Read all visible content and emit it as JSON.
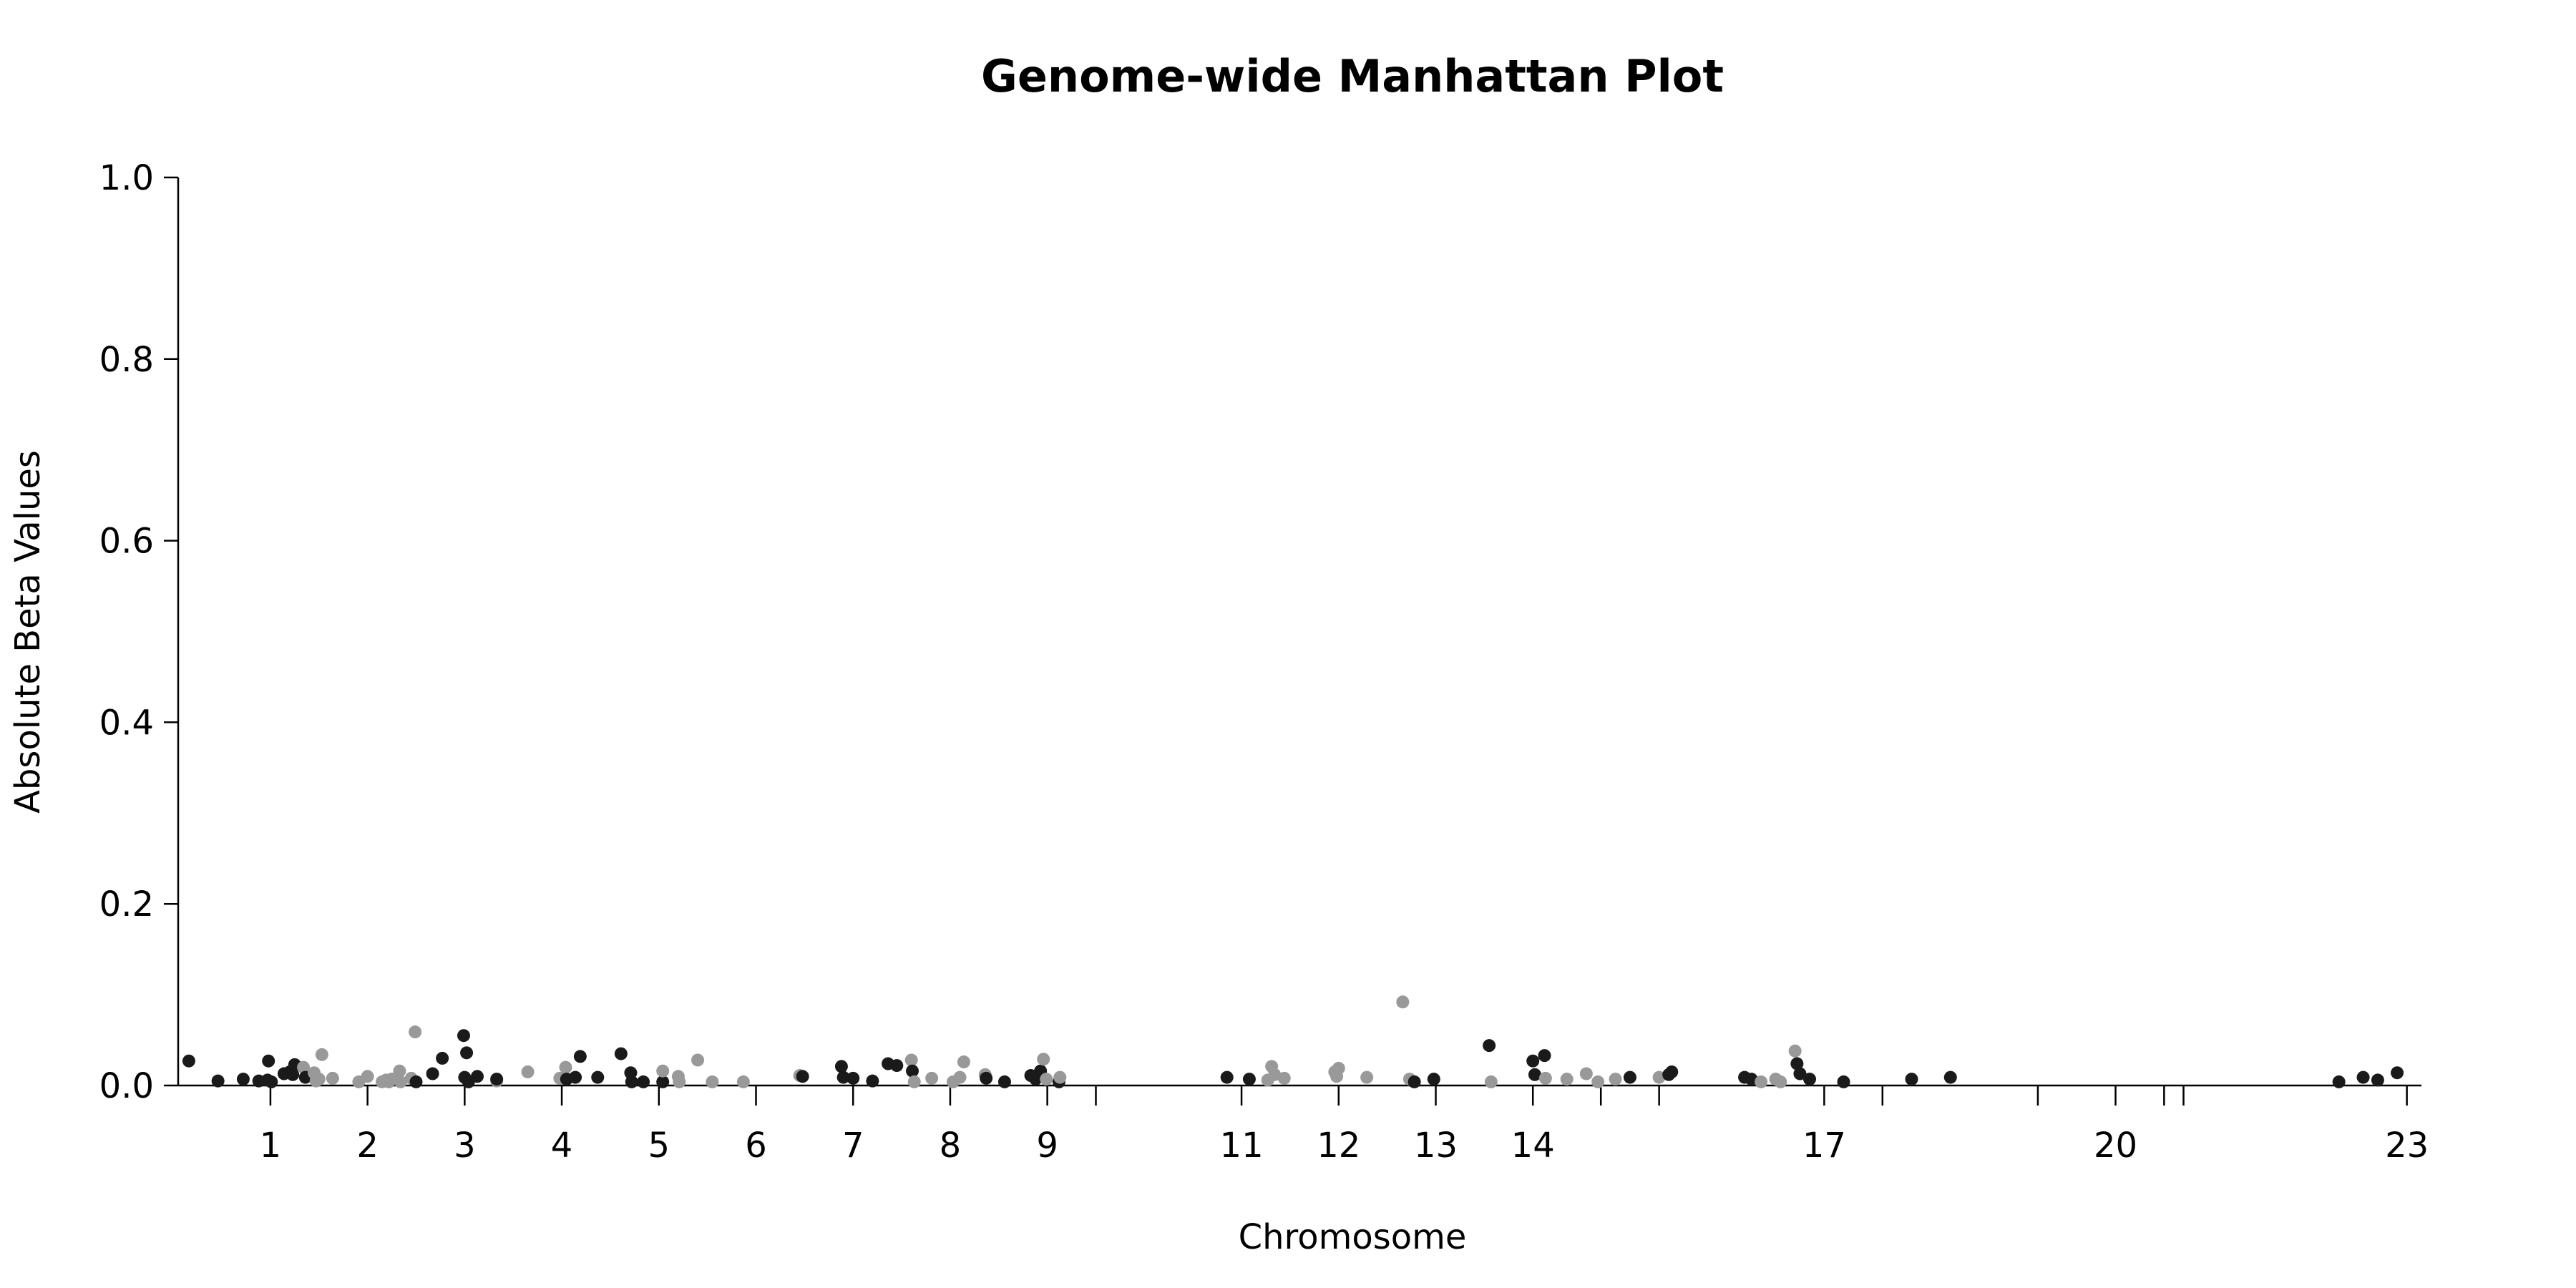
{
  "chart_data": {
    "type": "scatter",
    "subtype": "manhattan",
    "title": "Genome-wide Manhattan Plot",
    "xlabel": "Chromosome",
    "ylabel": "Absolute Beta Values",
    "ylim": [
      0,
      1.0
    ],
    "yticks": [
      "0.0",
      "0.2",
      "0.4",
      "0.6",
      "0.8",
      "1.0"
    ],
    "grid": false,
    "legend": "none",
    "colors": {
      "dark": "#1a1a1a",
      "light": "#999999"
    },
    "xlim": [
      0.05,
      23.15
    ],
    "chromosome_ticks": [
      {
        "label": "1",
        "x": 1.0
      },
      {
        "label": "2",
        "x": 2.0
      },
      {
        "label": "3",
        "x": 3.0
      },
      {
        "label": "4",
        "x": 4.0
      },
      {
        "label": "5",
        "x": 5.0
      },
      {
        "label": "6",
        "x": 6.0
      },
      {
        "label": "7",
        "x": 7.0
      },
      {
        "label": "8",
        "x": 8.0
      },
      {
        "label": "9",
        "x": 9.0
      },
      {
        "label": "",
        "x": 9.5
      },
      {
        "label": "11",
        "x": 11.0
      },
      {
        "label": "12",
        "x": 12.0
      },
      {
        "label": "13",
        "x": 13.0
      },
      {
        "label": "14",
        "x": 14.0
      },
      {
        "label": "",
        "x": 14.7
      },
      {
        "label": "",
        "x": 15.3
      },
      {
        "label": "17",
        "x": 17.0
      },
      {
        "label": "",
        "x": 17.6
      },
      {
        "label": "",
        "x": 19.2
      },
      {
        "label": "20",
        "x": 20.0
      },
      {
        "label": "",
        "x": 20.5
      },
      {
        "label": "",
        "x": 20.7
      },
      {
        "label": "23",
        "x": 23.0
      }
    ],
    "points": [
      {
        "x": 0.16,
        "y": 0.027,
        "c": "dark"
      },
      {
        "x": 0.46,
        "y": 0.005,
        "c": "dark"
      },
      {
        "x": 0.72,
        "y": 0.007,
        "c": "dark"
      },
      {
        "x": 0.88,
        "y": 0.005,
        "c": "dark"
      },
      {
        "x": 0.97,
        "y": 0.006,
        "c": "dark"
      },
      {
        "x": 0.98,
        "y": 0.027,
        "c": "dark"
      },
      {
        "x": 1.01,
        "y": 0.004,
        "c": "dark"
      },
      {
        "x": 1.14,
        "y": 0.013,
        "c": "dark"
      },
      {
        "x": 1.2,
        "y": 0.015,
        "c": "dark"
      },
      {
        "x": 1.23,
        "y": 0.012,
        "c": "dark"
      },
      {
        "x": 1.25,
        "y": 0.023,
        "c": "dark"
      },
      {
        "x": 1.34,
        "y": 0.02,
        "c": "light"
      },
      {
        "x": 1.36,
        "y": 0.009,
        "c": "dark"
      },
      {
        "x": 1.45,
        "y": 0.014,
        "c": "light"
      },
      {
        "x": 1.47,
        "y": 0.005,
        "c": "light"
      },
      {
        "x": 1.5,
        "y": 0.007,
        "c": "light"
      },
      {
        "x": 1.53,
        "y": 0.034,
        "c": "light"
      },
      {
        "x": 1.64,
        "y": 0.008,
        "c": "light"
      },
      {
        "x": 1.91,
        "y": 0.004,
        "c": "light"
      },
      {
        "x": 2.0,
        "y": 0.01,
        "c": "light"
      },
      {
        "x": 2.15,
        "y": 0.004,
        "c": "light"
      },
      {
        "x": 2.19,
        "y": 0.006,
        "c": "light"
      },
      {
        "x": 2.22,
        "y": 0.004,
        "c": "light"
      },
      {
        "x": 2.25,
        "y": 0.007,
        "c": "light"
      },
      {
        "x": 2.33,
        "y": 0.016,
        "c": "light"
      },
      {
        "x": 2.34,
        "y": 0.004,
        "c": "light"
      },
      {
        "x": 2.45,
        "y": 0.008,
        "c": "light"
      },
      {
        "x": 2.49,
        "y": 0.059,
        "c": "light"
      },
      {
        "x": 2.5,
        "y": 0.004,
        "c": "dark"
      },
      {
        "x": 2.67,
        "y": 0.013,
        "c": "dark"
      },
      {
        "x": 2.77,
        "y": 0.03,
        "c": "dark"
      },
      {
        "x": 2.99,
        "y": 0.055,
        "c": "dark"
      },
      {
        "x": 3.0,
        "y": 0.009,
        "c": "dark"
      },
      {
        "x": 3.02,
        "y": 0.036,
        "c": "dark"
      },
      {
        "x": 3.04,
        "y": 0.004,
        "c": "dark"
      },
      {
        "x": 3.13,
        "y": 0.01,
        "c": "dark"
      },
      {
        "x": 3.33,
        "y": 0.005,
        "c": "light"
      },
      {
        "x": 3.33,
        "y": 0.007,
        "c": "dark"
      },
      {
        "x": 3.65,
        "y": 0.015,
        "c": "light"
      },
      {
        "x": 3.98,
        "y": 0.008,
        "c": "light"
      },
      {
        "x": 4.04,
        "y": 0.02,
        "c": "light"
      },
      {
        "x": 4.05,
        "y": 0.007,
        "c": "dark"
      },
      {
        "x": 4.14,
        "y": 0.009,
        "c": "dark"
      },
      {
        "x": 4.19,
        "y": 0.032,
        "c": "dark"
      },
      {
        "x": 4.37,
        "y": 0.009,
        "c": "dark"
      },
      {
        "x": 4.61,
        "y": 0.035,
        "c": "dark"
      },
      {
        "x": 4.71,
        "y": 0.014,
        "c": "dark"
      },
      {
        "x": 4.72,
        "y": 0.004,
        "c": "dark"
      },
      {
        "x": 4.84,
        "y": 0.004,
        "c": "dark"
      },
      {
        "x": 5.04,
        "y": 0.004,
        "c": "dark"
      },
      {
        "x": 5.04,
        "y": 0.016,
        "c": "light"
      },
      {
        "x": 5.2,
        "y": 0.01,
        "c": "light"
      },
      {
        "x": 5.21,
        "y": 0.004,
        "c": "light"
      },
      {
        "x": 5.4,
        "y": 0.028,
        "c": "light"
      },
      {
        "x": 5.55,
        "y": 0.004,
        "c": "light"
      },
      {
        "x": 5.87,
        "y": 0.004,
        "c": "light"
      },
      {
        "x": 6.45,
        "y": 0.011,
        "c": "light"
      },
      {
        "x": 6.48,
        "y": 0.01,
        "c": "dark"
      },
      {
        "x": 6.88,
        "y": 0.021,
        "c": "dark"
      },
      {
        "x": 6.9,
        "y": 0.009,
        "c": "dark"
      },
      {
        "x": 7.0,
        "y": 0.008,
        "c": "dark"
      },
      {
        "x": 7.2,
        "y": 0.005,
        "c": "dark"
      },
      {
        "x": 7.36,
        "y": 0.024,
        "c": "dark"
      },
      {
        "x": 7.45,
        "y": 0.022,
        "c": "dark"
      },
      {
        "x": 7.6,
        "y": 0.028,
        "c": "light"
      },
      {
        "x": 7.61,
        "y": 0.016,
        "c": "dark"
      },
      {
        "x": 7.63,
        "y": 0.004,
        "c": "light"
      },
      {
        "x": 7.81,
        "y": 0.008,
        "c": "light"
      },
      {
        "x": 8.03,
        "y": 0.004,
        "c": "light"
      },
      {
        "x": 8.1,
        "y": 0.009,
        "c": "light"
      },
      {
        "x": 8.14,
        "y": 0.026,
        "c": "light"
      },
      {
        "x": 8.36,
        "y": 0.012,
        "c": "light"
      },
      {
        "x": 8.37,
        "y": 0.008,
        "c": "dark"
      },
      {
        "x": 8.56,
        "y": 0.004,
        "c": "dark"
      },
      {
        "x": 8.83,
        "y": 0.011,
        "c": "dark"
      },
      {
        "x": 8.88,
        "y": 0.007,
        "c": "dark"
      },
      {
        "x": 8.93,
        "y": 0.016,
        "c": "dark"
      },
      {
        "x": 8.96,
        "y": 0.029,
        "c": "light"
      },
      {
        "x": 8.99,
        "y": 0.007,
        "c": "light"
      },
      {
        "x": 9.12,
        "y": 0.004,
        "c": "dark"
      },
      {
        "x": 9.13,
        "y": 0.009,
        "c": "light"
      },
      {
        "x": 10.85,
        "y": 0.009,
        "c": "dark"
      },
      {
        "x": 11.08,
        "y": 0.007,
        "c": "dark"
      },
      {
        "x": 11.27,
        "y": 0.006,
        "c": "light"
      },
      {
        "x": 11.31,
        "y": 0.021,
        "c": "light"
      },
      {
        "x": 11.34,
        "y": 0.012,
        "c": "light"
      },
      {
        "x": 11.44,
        "y": 0.008,
        "c": "light"
      },
      {
        "x": 11.96,
        "y": 0.015,
        "c": "light"
      },
      {
        "x": 11.98,
        "y": 0.01,
        "c": "light"
      },
      {
        "x": 12.0,
        "y": 0.019,
        "c": "light"
      },
      {
        "x": 12.29,
        "y": 0.009,
        "c": "light"
      },
      {
        "x": 12.66,
        "y": 0.092,
        "c": "light"
      },
      {
        "x": 12.73,
        "y": 0.007,
        "c": "light"
      },
      {
        "x": 12.78,
        "y": 0.004,
        "c": "dark"
      },
      {
        "x": 12.98,
        "y": 0.007,
        "c": "dark"
      },
      {
        "x": 13.55,
        "y": 0.044,
        "c": "dark"
      },
      {
        "x": 13.57,
        "y": 0.004,
        "c": "light"
      },
      {
        "x": 14.0,
        "y": 0.027,
        "c": "dark"
      },
      {
        "x": 14.02,
        "y": 0.012,
        "c": "dark"
      },
      {
        "x": 14.12,
        "y": 0.033,
        "c": "dark"
      },
      {
        "x": 14.13,
        "y": 0.008,
        "c": "light"
      },
      {
        "x": 14.35,
        "y": 0.007,
        "c": "light"
      },
      {
        "x": 14.55,
        "y": 0.013,
        "c": "light"
      },
      {
        "x": 14.67,
        "y": 0.004,
        "c": "light"
      },
      {
        "x": 14.85,
        "y": 0.007,
        "c": "light"
      },
      {
        "x": 15.0,
        "y": 0.009,
        "c": "dark"
      },
      {
        "x": 15.3,
        "y": 0.009,
        "c": "light"
      },
      {
        "x": 15.4,
        "y": 0.012,
        "c": "dark"
      },
      {
        "x": 15.43,
        "y": 0.015,
        "c": "dark"
      },
      {
        "x": 16.18,
        "y": 0.009,
        "c": "dark"
      },
      {
        "x": 16.25,
        "y": 0.007,
        "c": "dark"
      },
      {
        "x": 16.35,
        "y": 0.004,
        "c": "light"
      },
      {
        "x": 16.5,
        "y": 0.007,
        "c": "light"
      },
      {
        "x": 16.55,
        "y": 0.004,
        "c": "light"
      },
      {
        "x": 16.7,
        "y": 0.038,
        "c": "light"
      },
      {
        "x": 16.72,
        "y": 0.024,
        "c": "dark"
      },
      {
        "x": 16.75,
        "y": 0.013,
        "c": "dark"
      },
      {
        "x": 16.85,
        "y": 0.007,
        "c": "dark"
      },
      {
        "x": 17.2,
        "y": 0.004,
        "c": "dark"
      },
      {
        "x": 17.9,
        "y": 0.007,
        "c": "dark"
      },
      {
        "x": 18.3,
        "y": 0.009,
        "c": "dark"
      },
      {
        "x": 22.3,
        "y": 0.004,
        "c": "dark"
      },
      {
        "x": 22.55,
        "y": 0.009,
        "c": "dark"
      },
      {
        "x": 22.7,
        "y": 0.006,
        "c": "dark"
      },
      {
        "x": 22.9,
        "y": 0.014,
        "c": "dark"
      }
    ]
  }
}
